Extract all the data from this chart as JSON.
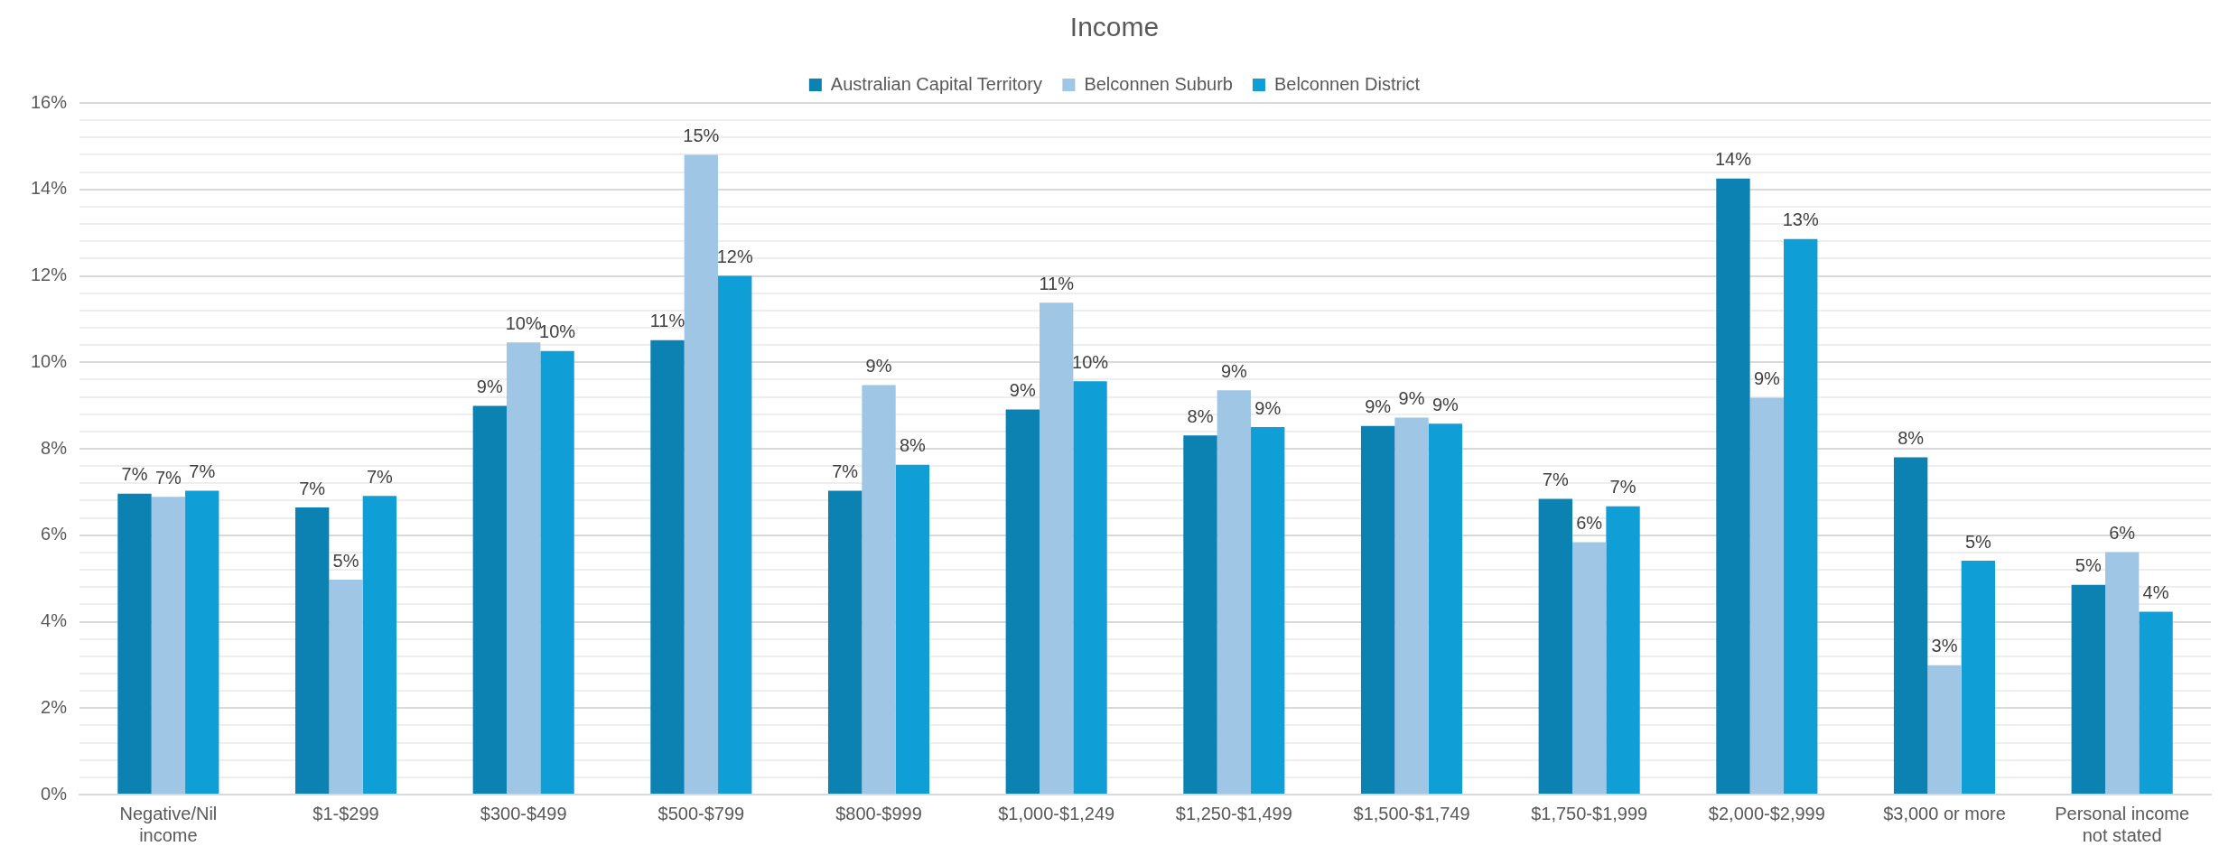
{
  "chart_data": {
    "type": "bar",
    "title": "Income",
    "legend": "top",
    "grid": "y",
    "categories": [
      "Negative/Nil income",
      "$1-$299",
      "$300-$499",
      "$500-$799",
      "$800-$999",
      "$1,000-$1,249",
      "$1,250-$1,499",
      "$1,500-$1,749",
      "$1,750-$1,999",
      "$2,000-$2,999",
      "$3,000 or more",
      "Personal income not stated"
    ],
    "ylim": [
      0,
      16
    ],
    "yticks": [
      {
        "value": 0,
        "label": "0%"
      },
      {
        "value": 0.4,
        "label": null
      },
      {
        "value": 0.8,
        "label": null
      },
      {
        "value": 1.2,
        "label": null
      },
      {
        "value": 1.6,
        "label": null
      },
      {
        "value": 2,
        "label": "2%"
      },
      {
        "value": 2.4,
        "label": null
      },
      {
        "value": 2.8,
        "label": null
      },
      {
        "value": 3.2,
        "label": null
      },
      {
        "value": 3.6,
        "label": null
      },
      {
        "value": 4,
        "label": "4%"
      },
      {
        "value": 4.4,
        "label": null
      },
      {
        "value": 4.8,
        "label": null
      },
      {
        "value": 5.2,
        "label": null
      },
      {
        "value": 5.6,
        "label": null
      },
      {
        "value": 6,
        "label": "6%"
      },
      {
        "value": 6.4,
        "label": null
      },
      {
        "value": 6.8,
        "label": null
      },
      {
        "value": 7.2,
        "label": null
      },
      {
        "value": 7.6,
        "label": null
      },
      {
        "value": 8,
        "label": "8%"
      },
      {
        "value": 8.4,
        "label": null
      },
      {
        "value": 8.8,
        "label": null
      },
      {
        "value": 9.2,
        "label": null
      },
      {
        "value": 9.6,
        "label": null
      },
      {
        "value": 10,
        "label": "10%"
      },
      {
        "value": 10.4,
        "label": null
      },
      {
        "value": 10.8,
        "label": null
      },
      {
        "value": 11.2,
        "label": null
      },
      {
        "value": 11.6,
        "label": null
      },
      {
        "value": 12,
        "label": "12%"
      },
      {
        "value": 12.4,
        "label": null
      },
      {
        "value": 12.8,
        "label": null
      },
      {
        "value": 13.2,
        "label": null
      },
      {
        "value": 13.6,
        "label": null
      },
      {
        "value": 14,
        "label": "14%"
      },
      {
        "value": 14.4,
        "label": null
      },
      {
        "value": 14.8,
        "label": null
      },
      {
        "value": 15.2,
        "label": null
      },
      {
        "value": 15.6,
        "label": null
      },
      {
        "value": 16,
        "label": "16%"
      }
    ],
    "series": [
      {
        "name": "Australian Capital Territory",
        "color": "#0b82b1",
        "values": [
          6.96,
          6.64,
          8.99,
          10.51,
          7.03,
          8.91,
          8.31,
          8.53,
          6.84,
          14.25,
          7.8,
          4.85
        ],
        "value_labels": [
          "7%",
          "7%",
          "9%",
          "11%",
          "7%",
          "9%",
          "8%",
          "9%",
          "7%",
          "14%",
          "8%",
          "5%"
        ]
      },
      {
        "name": "Belconnen Suburb",
        "color": "#a0c6e6",
        "values": [
          6.89,
          4.97,
          10.46,
          14.8,
          9.47,
          11.38,
          9.35,
          8.72,
          5.84,
          9.18,
          2.99,
          5.61
        ],
        "value_labels": [
          "7%",
          "5%",
          "10%",
          "15%",
          "9%",
          "11%",
          "9%",
          "9%",
          "6%",
          "9%",
          "3%",
          "6%"
        ]
      },
      {
        "name": "Belconnen District",
        "color": "#109ed6",
        "values": [
          7.03,
          6.91,
          10.26,
          12.0,
          7.63,
          9.56,
          8.5,
          8.58,
          6.67,
          12.85,
          5.41,
          4.23
        ],
        "value_labels": [
          "7%",
          "7%",
          "10%",
          "12%",
          "8%",
          "10%",
          "9%",
          "9%",
          "7%",
          "13%",
          "5%",
          "4%"
        ]
      }
    ]
  }
}
